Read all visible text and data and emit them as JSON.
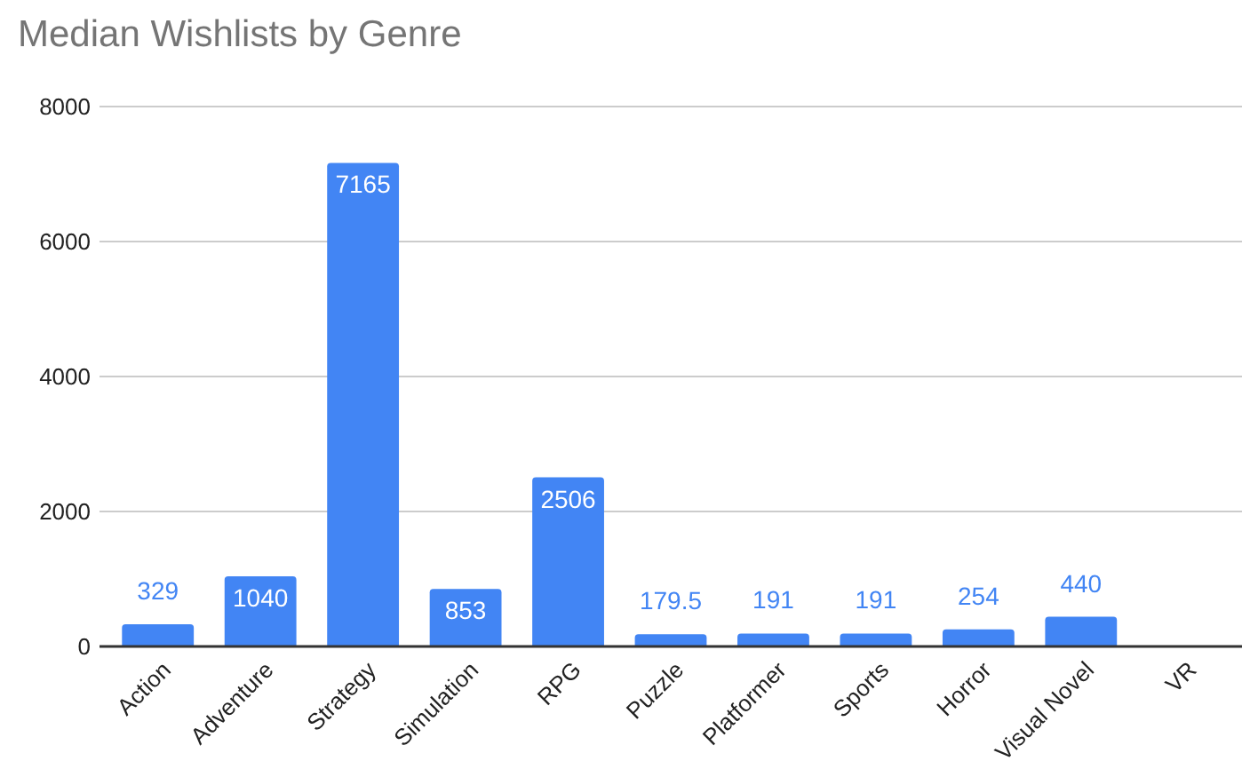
{
  "chart_data": {
    "type": "bar",
    "title": "Median Wishlists by Genre",
    "categories": [
      "Action",
      "Adventure",
      "Strategy",
      "Simulation",
      "RPG",
      "Puzzle",
      "Platformer",
      "Sports",
      "Horror",
      "Visual Novel",
      "VR"
    ],
    "values": [
      329,
      1040,
      7165,
      853,
      2506,
      179.5,
      191,
      191,
      254,
      440,
      null
    ],
    "color": "#4285f4",
    "ylim": [
      0,
      8000
    ],
    "yticks": [
      0,
      2000,
      4000,
      6000,
      8000
    ],
    "grid": "y",
    "data_labels": true
  }
}
